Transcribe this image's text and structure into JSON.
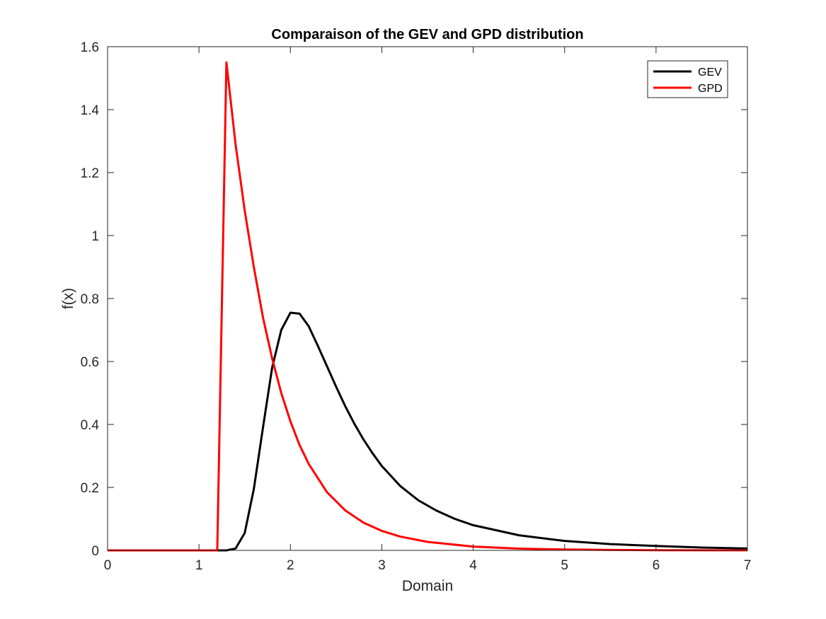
{
  "chart_data": {
    "type": "line",
    "title": "Comparaison of the GEV and GPD distribution",
    "xlabel": "Domain",
    "ylabel": "f(x)",
    "xlim": [
      0,
      7
    ],
    "ylim": [
      0,
      1.6
    ],
    "xticks": [
      "0",
      "1",
      "2",
      "3",
      "4",
      "5",
      "6",
      "7"
    ],
    "yticks": [
      "0",
      "0.2",
      "0.4",
      "0.6",
      "0.8",
      "1",
      "1.2",
      "1.4",
      "1.6"
    ],
    "grid": false,
    "legend_position": "top-right",
    "series": [
      {
        "name": "GEV",
        "color": "#000000",
        "x": [
          0,
          1.2,
          1.3,
          1.4,
          1.5,
          1.6,
          1.7,
          1.8,
          1.9,
          2.0,
          2.1,
          2.2,
          2.3,
          2.4,
          2.5,
          2.6,
          2.7,
          2.8,
          2.9,
          3.0,
          3.2,
          3.4,
          3.6,
          3.8,
          4.0,
          4.5,
          5.0,
          5.5,
          6.0,
          6.5,
          7.0
        ],
        "y": [
          0,
          0,
          0.0,
          0.006,
          0.055,
          0.195,
          0.39,
          0.58,
          0.7,
          0.755,
          0.752,
          0.712,
          0.65,
          0.585,
          0.52,
          0.458,
          0.402,
          0.352,
          0.308,
          0.268,
          0.205,
          0.159,
          0.126,
          0.1,
          0.08,
          0.048,
          0.03,
          0.02,
          0.014,
          0.009,
          0.006
        ]
      },
      {
        "name": "GPD",
        "color": "#ff0000",
        "x": [
          0,
          1.2,
          1.3,
          1.4,
          1.5,
          1.6,
          1.7,
          1.8,
          1.9,
          2.0,
          2.1,
          2.2,
          2.4,
          2.6,
          2.8,
          3.0,
          3.2,
          3.5,
          4.0,
          4.5,
          5.0,
          5.5,
          6.0,
          7.0
        ],
        "y": [
          0,
          0,
          1.55,
          1.29,
          1.08,
          0.9,
          0.74,
          0.61,
          0.5,
          0.41,
          0.335,
          0.275,
          0.185,
          0.127,
          0.088,
          0.062,
          0.044,
          0.027,
          0.012,
          0.0055,
          0.0027,
          0.0014,
          0.0007,
          0.0002
        ]
      }
    ]
  }
}
